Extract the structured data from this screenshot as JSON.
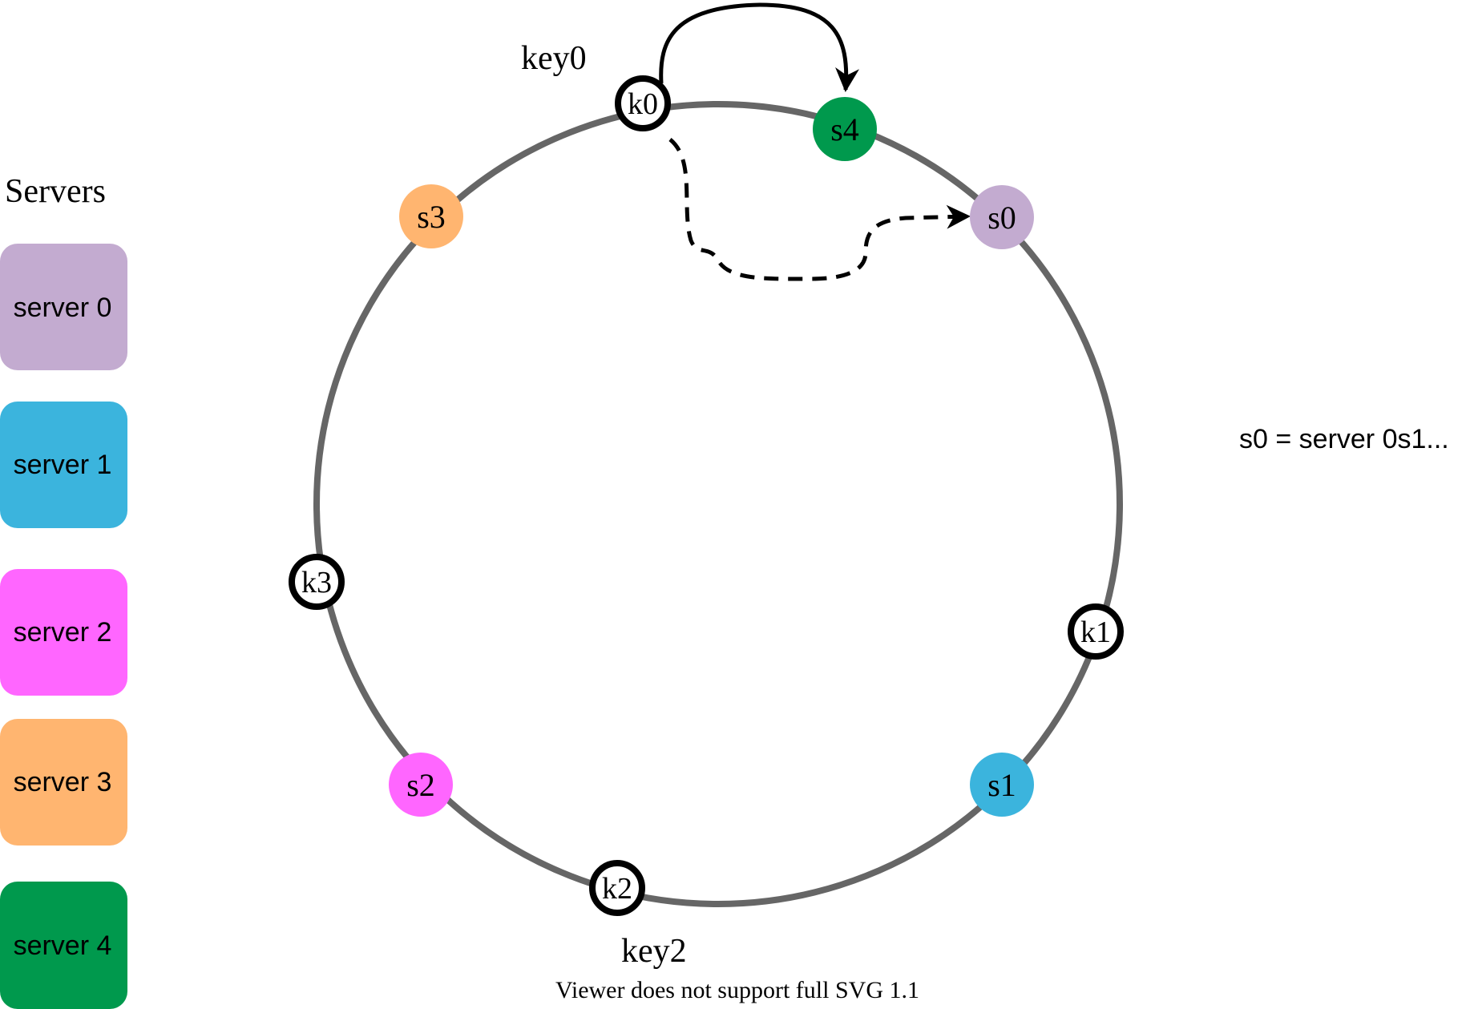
{
  "servers_title": "Servers",
  "servers": [
    {
      "id": "s0",
      "label": "server 0",
      "color": "#c3abd0"
    },
    {
      "id": "s1",
      "label": "server 1",
      "color": "#3bb4dd"
    },
    {
      "id": "s2",
      "label": "server 2",
      "color": "#ff66ff"
    },
    {
      "id": "s3",
      "label": "server 3",
      "color": "#ffb570"
    },
    {
      "id": "s4",
      "label": "server 4",
      "color": "#00994d"
    }
  ],
  "ring": {
    "server_nodes": [
      {
        "id": "s0",
        "label": "s0",
        "color": "#c3abd0"
      },
      {
        "id": "s1",
        "label": "s1",
        "color": "#3bb4dd"
      },
      {
        "id": "s2",
        "label": "s2",
        "color": "#ff66ff"
      },
      {
        "id": "s3",
        "label": "s3",
        "color": "#ffb570"
      },
      {
        "id": "s4",
        "label": "s4",
        "color": "#00994d"
      }
    ],
    "key_nodes": [
      {
        "id": "k0",
        "label": "k0"
      },
      {
        "id": "k1",
        "label": "k1"
      },
      {
        "id": "k2",
        "label": "k2"
      },
      {
        "id": "k3",
        "label": "k3"
      }
    ]
  },
  "key_labels": {
    "key0": "key0",
    "key2": "key2"
  },
  "legend_note": "s0 = server 0s1...",
  "footer_note": "Viewer does not support full SVG 1.1"
}
